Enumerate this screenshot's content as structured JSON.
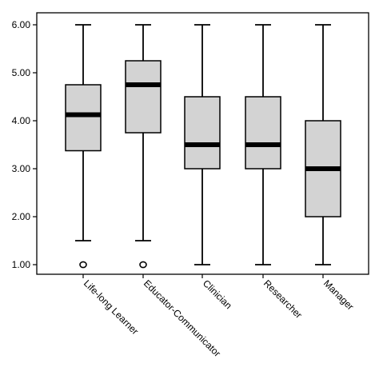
{
  "chart_data": {
    "type": "boxplot",
    "title": "",
    "xlabel": "",
    "ylabel": "",
    "ylim": [
      0.8,
      6.25
    ],
    "yticks": [
      "1.00",
      "2.00",
      "3.00",
      "4.00",
      "5.00",
      "6.00"
    ],
    "grid": false,
    "box_fill": "#d3d3d3",
    "line_color": "#000000",
    "categories": [
      "Life-long Learner",
      "Educator-Communicator",
      "Clinician",
      "Researcher",
      "Manager"
    ],
    "boxes": [
      {
        "category": "Life-long Learner",
        "whisker_low": 1.5,
        "q1": 3.375,
        "median": 4.125,
        "q3": 4.75,
        "whisker_high": 6.0,
        "outliers": [
          1.0
        ]
      },
      {
        "category": "Educator-Communicator",
        "whisker_low": 1.5,
        "q1": 3.75,
        "median": 4.75,
        "q3": 5.25,
        "whisker_high": 6.0,
        "outliers": [
          1.0
        ]
      },
      {
        "category": "Clinician",
        "whisker_low": 1.0,
        "q1": 3.0,
        "median": 3.5,
        "q3": 4.5,
        "whisker_high": 6.0,
        "outliers": []
      },
      {
        "category": "Researcher",
        "whisker_low": 1.0,
        "q1": 3.0,
        "median": 3.5,
        "q3": 4.5,
        "whisker_high": 6.0,
        "outliers": []
      },
      {
        "category": "Manager",
        "whisker_low": 1.0,
        "q1": 2.0,
        "median": 3.0,
        "q3": 4.0,
        "whisker_high": 6.0,
        "outliers": []
      }
    ]
  }
}
